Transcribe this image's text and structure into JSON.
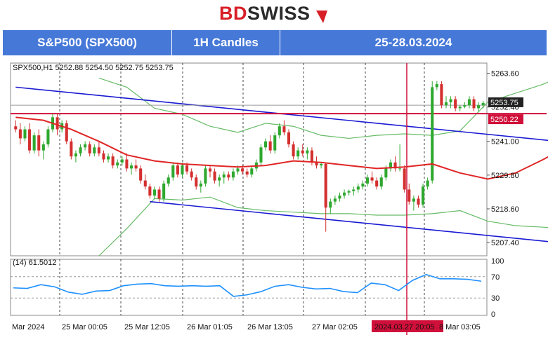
{
  "brand": {
    "bd": "BD",
    "swiss": "SWISS",
    "colors": {
      "red": "#d71f27",
      "dark": "#2a2a2a"
    }
  },
  "header": {
    "symbol": "S&P500 (SPX500)",
    "timeframe": "1H Candles",
    "dates": "25-28.03.2024",
    "background": "#4678d8"
  },
  "chart_data": {
    "type": "candlestick",
    "info_line": "SPX500,H1  5252.88 5254.50 5252.75 5253.75",
    "indicator_label": "(14) 61.5012",
    "price_axis": {
      "ticks": [
        "5263.60",
        "5252.40",
        "5241.00",
        "5229.80",
        "5218.60",
        "5207.40"
      ],
      "ylim": [
        5203,
        5267
      ]
    },
    "indicator_axis": {
      "ticks": [
        "100",
        "70",
        "30",
        "0"
      ],
      "ylim": [
        0,
        100
      ]
    },
    "time_labels": [
      "Mar 2024",
      "25 Mar 00:05",
      "25 Mar 12:05",
      "26 Mar 01:05",
      "26 Mar 13:05",
      "27 Mar 02:05",
      "2024.03.27 20:05",
      "8 Mar 03:05"
    ],
    "current_price": {
      "text": "5253.75",
      "value": 5253.75
    },
    "horizontal_level": {
      "text": "5250.22",
      "value": 5250.22
    },
    "last_close_level": 5253.0,
    "channel": {
      "upper": [
        [
          0,
          5259.0
        ],
        [
          140,
          5237.5
        ]
      ],
      "lower": [
        [
          29,
          5221.0
        ],
        [
          123,
          5206.5
        ]
      ]
    },
    "series": [
      {
        "name": "candles",
        "candles": [
          [
            5246.0,
            5248.0,
            5244.0,
            5245.0
          ],
          [
            5245.0,
            5247.0,
            5240.0,
            5242.0
          ],
          [
            5242.0,
            5246.0,
            5241.0,
            5245.0
          ],
          [
            5245.0,
            5247.0,
            5237.0,
            5238.0
          ],
          [
            5238.0,
            5244.0,
            5237.0,
            5243.0
          ],
          [
            5243.0,
            5245.0,
            5236.0,
            5238.0
          ],
          [
            5238.0,
            5241.0,
            5235.0,
            5240.0
          ],
          [
            5240.0,
            5246.0,
            5239.0,
            5245.0
          ],
          [
            5245.0,
            5250.0,
            5244.0,
            5249.0
          ],
          [
            5249.0,
            5250.0,
            5243.0,
            5245.0
          ],
          [
            5245.0,
            5248.0,
            5244.0,
            5247.0
          ],
          [
            5247.0,
            5248.0,
            5240.0,
            5241.0
          ],
          [
            5241.0,
            5242.0,
            5235.0,
            5236.0
          ],
          [
            5236.0,
            5238.0,
            5234.0,
            5237.0
          ],
          [
            5237.0,
            5240.0,
            5236.0,
            5239.0
          ],
          [
            5239.0,
            5241.0,
            5238.0,
            5240.0
          ],
          [
            5240.0,
            5241.0,
            5236.0,
            5237.0
          ],
          [
            5237.0,
            5240.0,
            5236.0,
            5239.0
          ],
          [
            5239.0,
            5241.0,
            5236.0,
            5237.0
          ],
          [
            5237.0,
            5238.0,
            5234.0,
            5235.0
          ],
          [
            5235.0,
            5237.0,
            5234.0,
            5236.0
          ],
          [
            5236.0,
            5237.0,
            5232.0,
            5233.0
          ],
          [
            5233.0,
            5235.0,
            5232.0,
            5234.0
          ],
          [
            5234.0,
            5236.0,
            5233.0,
            5235.0
          ],
          [
            5235.0,
            5237.0,
            5231.0,
            5232.0
          ],
          [
            5232.0,
            5234.0,
            5230.0,
            5233.0
          ],
          [
            5233.0,
            5235.0,
            5231.0,
            5232.0
          ],
          [
            5232.0,
            5233.0,
            5227.0,
            5228.0
          ],
          [
            5228.0,
            5230.0,
            5225.0,
            5226.0
          ],
          [
            5226.0,
            5227.0,
            5222.0,
            5223.0
          ],
          [
            5223.0,
            5226.0,
            5222.0,
            5225.0
          ],
          [
            5225.0,
            5226.0,
            5221.0,
            5222.0
          ],
          [
            5222.0,
            5228.0,
            5221.0,
            5227.0
          ],
          [
            5227.0,
            5230.0,
            5226.0,
            5229.0
          ],
          [
            5229.0,
            5234.0,
            5228.0,
            5233.0
          ],
          [
            5233.0,
            5234.0,
            5229.0,
            5230.0
          ],
          [
            5230.0,
            5234.0,
            5229.0,
            5233.0
          ],
          [
            5233.0,
            5234.0,
            5230.0,
            5231.0
          ],
          [
            5231.0,
            5232.0,
            5228.0,
            5229.0
          ],
          [
            5229.0,
            5230.0,
            5225.0,
            5226.0
          ],
          [
            5226.0,
            5228.0,
            5224.0,
            5227.0
          ],
          [
            5227.0,
            5233.0,
            5226.0,
            5232.0
          ],
          [
            5232.0,
            5233.0,
            5229.0,
            5231.0
          ],
          [
            5231.0,
            5232.0,
            5227.0,
            5228.0
          ],
          [
            5228.0,
            5230.0,
            5226.0,
            5229.0
          ],
          [
            5229.0,
            5231.0,
            5227.0,
            5230.0
          ],
          [
            5230.0,
            5231.0,
            5228.0,
            5229.0
          ],
          [
            5229.0,
            5232.0,
            5228.0,
            5231.0
          ],
          [
            5231.0,
            5233.0,
            5230.0,
            5232.0
          ],
          [
            5232.0,
            5233.0,
            5230.0,
            5231.0
          ],
          [
            5231.0,
            5232.0,
            5229.0,
            5230.0
          ],
          [
            5230.0,
            5233.0,
            5229.0,
            5232.0
          ],
          [
            5232.0,
            5235.0,
            5231.0,
            5234.0
          ],
          [
            5234.0,
            5240.0,
            5233.0,
            5239.0
          ],
          [
            5239.0,
            5242.0,
            5238.0,
            5241.0
          ],
          [
            5241.0,
            5243.0,
            5237.0,
            5238.0
          ],
          [
            5238.0,
            5244.0,
            5237.0,
            5243.0
          ],
          [
            5243.0,
            5247.0,
            5242.0,
            5246.0
          ],
          [
            5246.0,
            5248.0,
            5243.0,
            5244.0
          ],
          [
            5244.0,
            5245.0,
            5239.0,
            5240.0
          ],
          [
            5240.0,
            5241.0,
            5235.0,
            5236.0
          ],
          [
            5236.0,
            5239.0,
            5235.0,
            5238.0
          ],
          [
            5238.0,
            5240.0,
            5236.0,
            5237.0
          ],
          [
            5237.0,
            5239.0,
            5235.0,
            5238.0
          ],
          [
            5238.0,
            5239.0,
            5233.0,
            5234.0
          ],
          [
            5234.0,
            5236.0,
            5232.0,
            5233.0
          ],
          [
            5233.0,
            5234.0,
            5232.0,
            5233.5
          ],
          [
            5233.5,
            5234.0,
            5211.0,
            5219.0
          ],
          [
            5219.0,
            5222.0,
            5217.0,
            5221.0
          ],
          [
            5221.0,
            5223.0,
            5220.0,
            5222.0
          ],
          [
            5222.0,
            5224.0,
            5221.0,
            5223.0
          ],
          [
            5223.0,
            5225.0,
            5222.0,
            5224.0
          ],
          [
            5224.0,
            5225.0,
            5223.0,
            5224.5
          ],
          [
            5224.5,
            5226.0,
            5223.0,
            5225.0
          ],
          [
            5225.0,
            5227.0,
            5224.0,
            5226.0
          ],
          [
            5226.0,
            5228.0,
            5225.0,
            5227.0
          ],
          [
            5227.0,
            5230.0,
            5226.0,
            5229.0
          ],
          [
            5229.0,
            5231.0,
            5227.0,
            5228.0
          ],
          [
            5228.0,
            5229.0,
            5225.0,
            5226.0
          ],
          [
            5226.0,
            5230.0,
            5225.0,
            5229.0
          ],
          [
            5229.0,
            5233.0,
            5228.0,
            5232.0
          ],
          [
            5232.0,
            5235.0,
            5231.0,
            5234.0
          ],
          [
            5234.0,
            5236.0,
            5231.0,
            5232.0
          ],
          [
            5232.0,
            5240.0,
            5231.0,
            5232.0
          ],
          [
            5232.0,
            5233.0,
            5224.0,
            5225.0
          ],
          [
            5225.0,
            5227.0,
            5220.0,
            5221.0
          ],
          [
            5221.0,
            5223.0,
            5218.0,
            5222.0
          ],
          [
            5222.0,
            5223.0,
            5219.0,
            5220.0
          ],
          [
            5220.0,
            5227.0,
            5219.0,
            5226.0
          ],
          [
            5226.0,
            5229.0,
            5225.0,
            5228.0
          ],
          [
            5228.0,
            5261.0,
            5227.0,
            5259.0
          ],
          [
            5259.0,
            5261.0,
            5258.0,
            5260.0
          ],
          [
            5260.0,
            5261.0,
            5252.0,
            5253.0
          ],
          [
            5253.0,
            5256.0,
            5252.0,
            5254.0
          ],
          [
            5254.0,
            5256.0,
            5252.0,
            5255.0
          ],
          [
            5255.0,
            5256.0,
            5251.0,
            5252.0
          ],
          [
            5252.0,
            5253.0,
            5251.0,
            5252.5
          ],
          [
            5252.5,
            5254.0,
            5252.0,
            5253.0
          ],
          [
            5253.0,
            5256.0,
            5252.0,
            5255.0
          ],
          [
            5255.0,
            5256.0,
            5251.0,
            5252.0
          ],
          [
            5252.0,
            5254.0,
            5251.0,
            5253.0
          ],
          [
            5253.0,
            5254.5,
            5252.0,
            5253.75
          ]
        ]
      },
      {
        "name": "ma",
        "points": [
          [
            0,
            5249.0
          ],
          [
            6,
            5248.0
          ],
          [
            12,
            5245.0
          ],
          [
            18,
            5241.0
          ],
          [
            24,
            5236.5
          ],
          [
            30,
            5234.5
          ],
          [
            36,
            5233.5
          ],
          [
            42,
            5233.0
          ],
          [
            48,
            5232.5
          ],
          [
            54,
            5233.0
          ],
          [
            60,
            5234.5
          ],
          [
            66,
            5234.0
          ],
          [
            72,
            5233.0
          ],
          [
            78,
            5232.0
          ],
          [
            84,
            5232.5
          ],
          [
            90,
            5233.5
          ],
          [
            96,
            5230.5
          ],
          [
            102,
            5228.5
          ],
          [
            108,
            5230.5
          ],
          [
            114,
            5235.0
          ],
          [
            120,
            5240.0
          ],
          [
            126,
            5245.0
          ]
        ]
      },
      {
        "name": "band-upper",
        "points": [
          [
            18,
            5262.0
          ],
          [
            24,
            5259.0
          ],
          [
            30,
            5252.0
          ],
          [
            36,
            5250.0
          ],
          [
            42,
            5246.0
          ],
          [
            48,
            5244.0
          ],
          [
            54,
            5247.0
          ],
          [
            60,
            5246.0
          ],
          [
            66,
            5243.0
          ],
          [
            72,
            5242.0
          ],
          [
            78,
            5243.0
          ],
          [
            84,
            5243.5
          ],
          [
            90,
            5243.0
          ],
          [
            96,
            5244.5
          ],
          [
            102,
            5254.0
          ],
          [
            108,
            5257.0
          ],
          [
            114,
            5260.0
          ],
          [
            120,
            5264.0
          ],
          [
            126,
            5266.5
          ]
        ]
      },
      {
        "name": "band-lower",
        "points": [
          [
            18,
            5203.0
          ],
          [
            24,
            5212.0
          ],
          [
            30,
            5222.0
          ],
          [
            36,
            5221.5
          ],
          [
            42,
            5222.5
          ],
          [
            48,
            5219.0
          ],
          [
            54,
            5218.0
          ],
          [
            60,
            5217.5
          ],
          [
            66,
            5217.0
          ],
          [
            72,
            5217.0
          ],
          [
            78,
            5216.5
          ],
          [
            84,
            5216.5
          ],
          [
            90,
            5217.0
          ],
          [
            96,
            5218.0
          ],
          [
            102,
            5214.5
          ],
          [
            108,
            5213.0
          ],
          [
            114,
            5212.5
          ],
          [
            120,
            5212.0
          ],
          [
            126,
            5211.8
          ]
        ]
      },
      {
        "name": "indicator",
        "points": [
          [
            0,
            49
          ],
          [
            6,
            48
          ],
          [
            12,
            55
          ],
          [
            18,
            51
          ],
          [
            24,
            41
          ],
          [
            30,
            37
          ],
          [
            36,
            43
          ],
          [
            42,
            44
          ],
          [
            48,
            53
          ],
          [
            54,
            56
          ],
          [
            60,
            57
          ],
          [
            66,
            53
          ],
          [
            72,
            52
          ],
          [
            78,
            53
          ],
          [
            84,
            52
          ],
          [
            90,
            53
          ],
          [
            96,
            33
          ],
          [
            102,
            36
          ],
          [
            108,
            42
          ],
          [
            114,
            52
          ],
          [
            120,
            55
          ],
          [
            126,
            50
          ],
          [
            132,
            47
          ],
          [
            138,
            48
          ],
          [
            144,
            42
          ],
          [
            150,
            40
          ],
          [
            156,
            58
          ],
          [
            162,
            55
          ],
          [
            168,
            44
          ],
          [
            174,
            63
          ],
          [
            180,
            74
          ],
          [
            186,
            66
          ],
          [
            192,
            66
          ],
          [
            198,
            65
          ],
          [
            204,
            61.5
          ]
        ]
      }
    ],
    "indicator_label_value": 61.5012,
    "vline_marker_label": "2024.03.27 20:05",
    "colors": {
      "bull": "#2ea82e",
      "bear": "#d32f2f",
      "ma": "#e02525",
      "band": "#66bb66",
      "channel": "#1a1ad4",
      "level": "#d0103a",
      "indicator": "#1e90ff",
      "current": "#9a9a9a"
    }
  }
}
